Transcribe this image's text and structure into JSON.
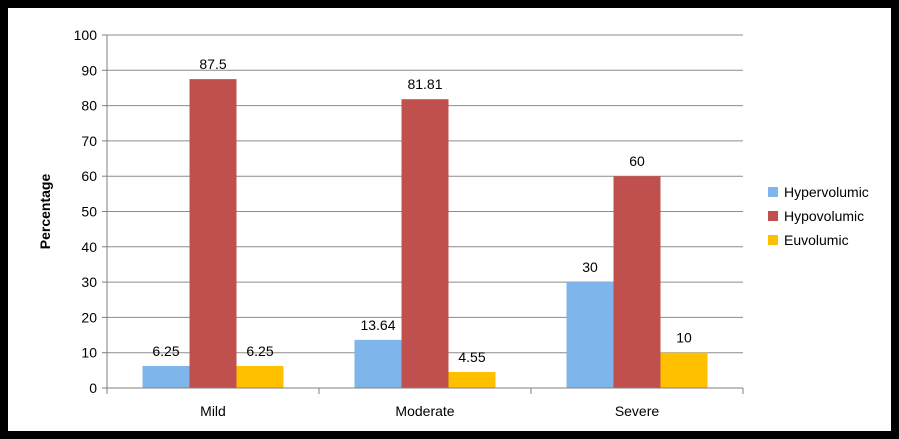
{
  "chart_data": {
    "type": "bar",
    "categories": [
      "Mild",
      "Moderate",
      "Severe"
    ],
    "series": [
      {
        "name": "Hypervolumic",
        "values": [
          6.25,
          13.64,
          30
        ],
        "labels": [
          "6.25",
          "13.64",
          "30"
        ],
        "color": "#7EB6EB"
      },
      {
        "name": "Hypovolumic",
        "values": [
          87.5,
          81.81,
          60
        ],
        "labels": [
          "87.5",
          "81.81",
          "60"
        ],
        "color": "#C0504D"
      },
      {
        "name": "Euvolumic",
        "values": [
          6.25,
          4.55,
          10
        ],
        "labels": [
          "6.25",
          "4.55",
          "10"
        ],
        "color": "#FFC000"
      }
    ],
    "ylabel": "Percentage",
    "xlabel": "",
    "ylim": [
      0,
      100
    ],
    "yticks": [
      "0",
      "10",
      "20",
      "30",
      "40",
      "50",
      "60",
      "70",
      "80",
      "90",
      "100"
    ],
    "grid": true,
    "legend_position": "right"
  }
}
